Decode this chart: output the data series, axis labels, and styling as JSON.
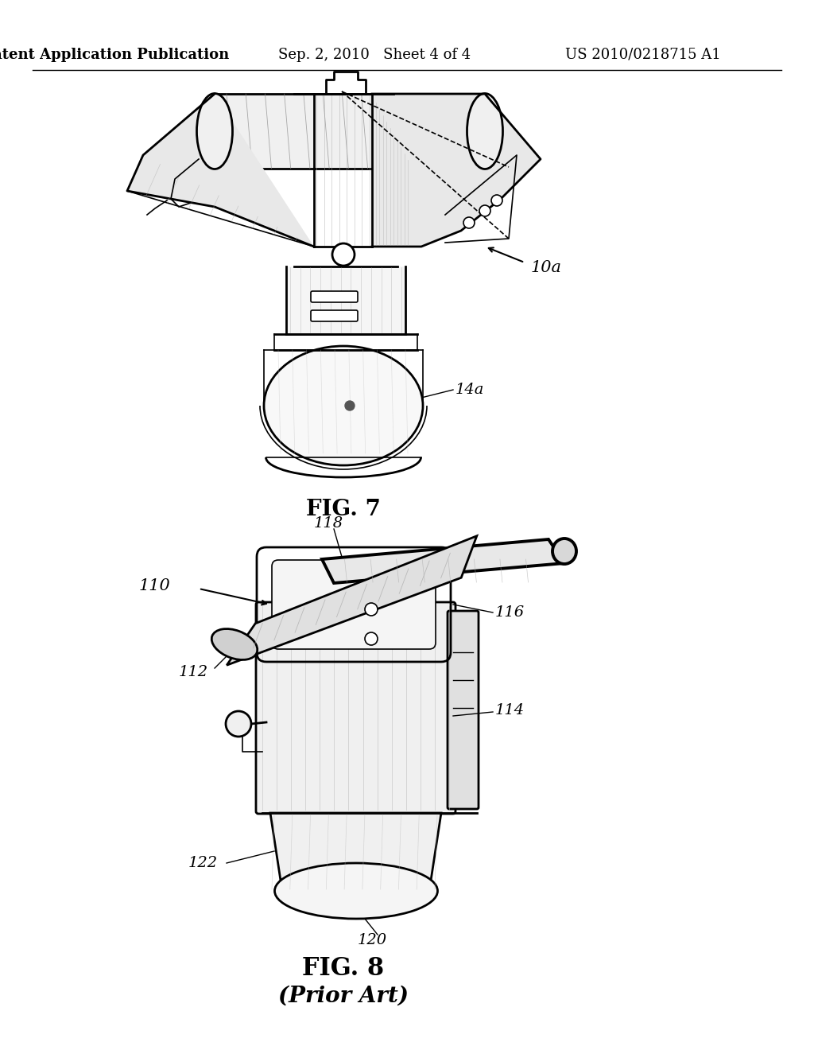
{
  "background_color": "#ffffff",
  "header_left": "Patent Application Publication",
  "header_center": "Sep. 2, 2010   Sheet 4 of 4",
  "header_right": "US 2010/0218715 A1",
  "header_fontsize": 13,
  "fig7_label": "FIG. 7",
  "fig8_label": "FIG. 8",
  "fig8_sublabel": "(Prior Art)",
  "label_10a": "10a",
  "label_14a": "14a",
  "label_110": "110",
  "label_112": "112",
  "label_114": "114",
  "label_116": "116",
  "label_118": "118",
  "label_120": "120",
  "label_122": "122",
  "line_color": "#000000",
  "text_color": "#000000",
  "label_fontsize": 13,
  "fig_label_fontsize": 18
}
